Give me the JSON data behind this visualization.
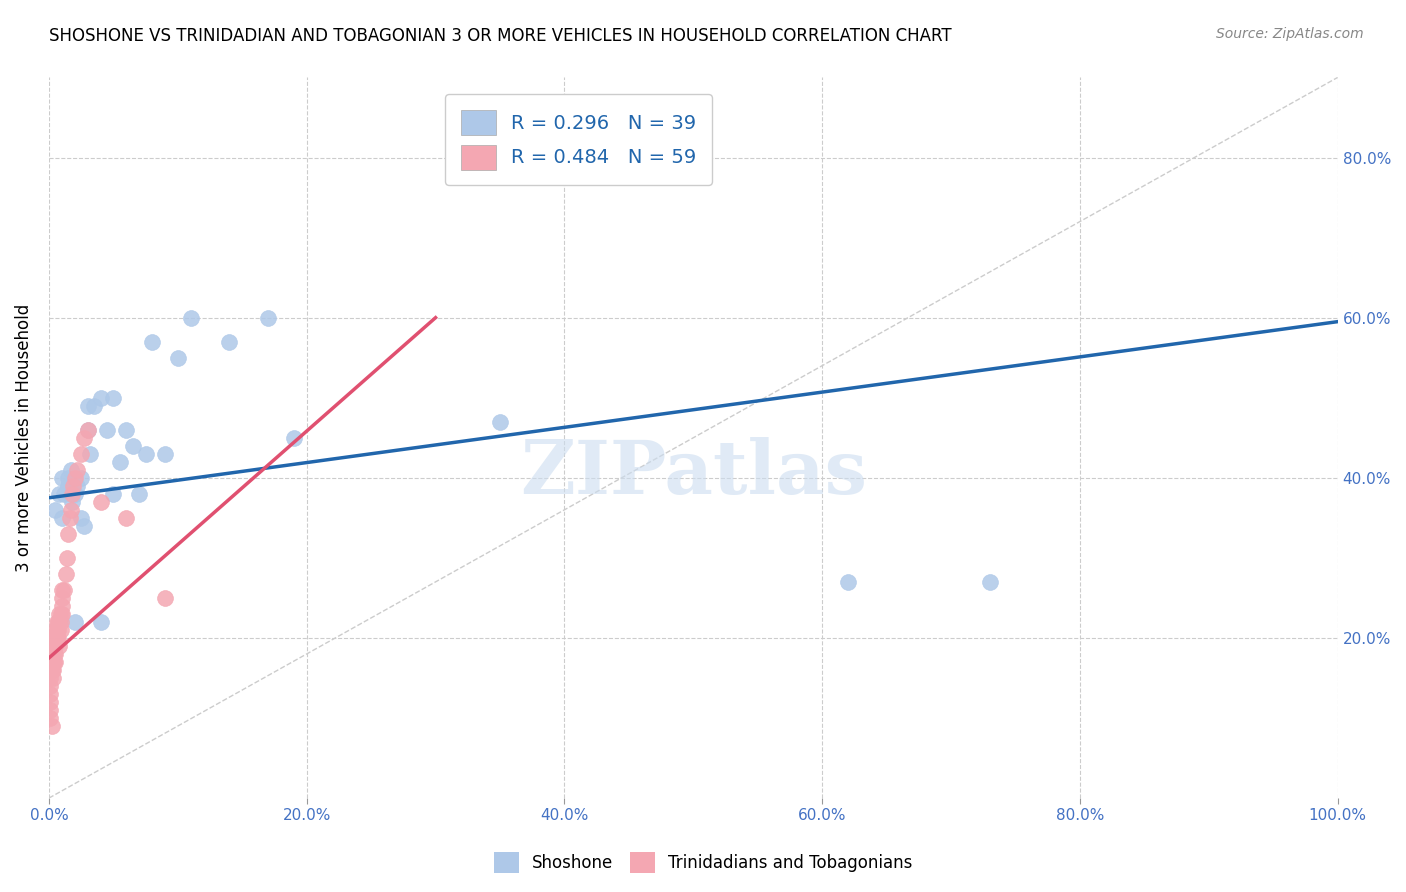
{
  "title": "SHOSHONE VS TRINIDADIAN AND TOBAGONIAN 3 OR MORE VEHICLES IN HOUSEHOLD CORRELATION CHART",
  "source": "Source: ZipAtlas.com",
  "ylabel": "3 or more Vehicles in Household",
  "xlim": [
    0.0,
    1.0
  ],
  "ylim": [
    0.0,
    0.9
  ],
  "xticks": [
    0.0,
    0.2,
    0.4,
    0.6,
    0.8,
    1.0
  ],
  "xticklabels": [
    "0.0%",
    "20.0%",
    "40.0%",
    "60.0%",
    "80.0%",
    "100.0%"
  ],
  "right_yticks": [
    0.2,
    0.4,
    0.6,
    0.8
  ],
  "right_yticklabels": [
    "20.0%",
    "40.0%",
    "60.0%",
    "80.0%"
  ],
  "blue_color": "#aec8e8",
  "pink_color": "#f4a7b2",
  "blue_line_color": "#2166ac",
  "pink_line_color": "#e05070",
  "diagonal_color": "#cccccc",
  "watermark": "ZIPatlas",
  "shoshone_x": [
    0.005,
    0.008,
    0.01,
    0.01,
    0.012,
    0.015,
    0.015,
    0.017,
    0.018,
    0.02,
    0.02,
    0.022,
    0.025,
    0.025,
    0.027,
    0.03,
    0.03,
    0.032,
    0.035,
    0.04,
    0.04,
    0.045,
    0.05,
    0.05,
    0.055,
    0.06,
    0.065,
    0.07,
    0.075,
    0.08,
    0.09,
    0.1,
    0.11,
    0.14,
    0.17,
    0.19,
    0.35,
    0.62,
    0.73
  ],
  "shoshone_y": [
    0.36,
    0.38,
    0.4,
    0.35,
    0.38,
    0.39,
    0.4,
    0.41,
    0.37,
    0.22,
    0.38,
    0.39,
    0.4,
    0.35,
    0.34,
    0.46,
    0.49,
    0.43,
    0.49,
    0.5,
    0.22,
    0.46,
    0.5,
    0.38,
    0.42,
    0.46,
    0.44,
    0.38,
    0.43,
    0.57,
    0.43,
    0.55,
    0.6,
    0.57,
    0.6,
    0.45,
    0.47,
    0.27,
    0.27
  ],
  "trinidadian_x": [
    0.001,
    0.001,
    0.001,
    0.001,
    0.001,
    0.001,
    0.001,
    0.001,
    0.002,
    0.002,
    0.002,
    0.002,
    0.003,
    0.003,
    0.003,
    0.003,
    0.003,
    0.003,
    0.004,
    0.004,
    0.004,
    0.004,
    0.005,
    0.005,
    0.005,
    0.005,
    0.005,
    0.006,
    0.006,
    0.006,
    0.007,
    0.007,
    0.007,
    0.008,
    0.008,
    0.008,
    0.009,
    0.009,
    0.009,
    0.01,
    0.01,
    0.01,
    0.01,
    0.012,
    0.013,
    0.014,
    0.015,
    0.016,
    0.017,
    0.018,
    0.019,
    0.02,
    0.022,
    0.025,
    0.027,
    0.03,
    0.04,
    0.06,
    0.09
  ],
  "trinidadian_y": [
    0.17,
    0.16,
    0.15,
    0.14,
    0.13,
    0.12,
    0.11,
    0.1,
    0.18,
    0.17,
    0.16,
    0.09,
    0.18,
    0.19,
    0.2,
    0.17,
    0.16,
    0.15,
    0.2,
    0.19,
    0.18,
    0.17,
    0.21,
    0.2,
    0.19,
    0.18,
    0.17,
    0.22,
    0.21,
    0.2,
    0.22,
    0.21,
    0.2,
    0.23,
    0.22,
    0.19,
    0.23,
    0.22,
    0.21,
    0.26,
    0.25,
    0.24,
    0.23,
    0.26,
    0.28,
    0.3,
    0.33,
    0.35,
    0.36,
    0.38,
    0.39,
    0.4,
    0.41,
    0.43,
    0.45,
    0.46,
    0.37,
    0.35,
    0.25
  ],
  "blue_line_x0": 0.0,
  "blue_line_y0": 0.375,
  "blue_line_x1": 1.0,
  "blue_line_y1": 0.595,
  "pink_line_x0": 0.0,
  "pink_line_y0": 0.175,
  "pink_line_x1": 0.3,
  "pink_line_y1": 0.6
}
